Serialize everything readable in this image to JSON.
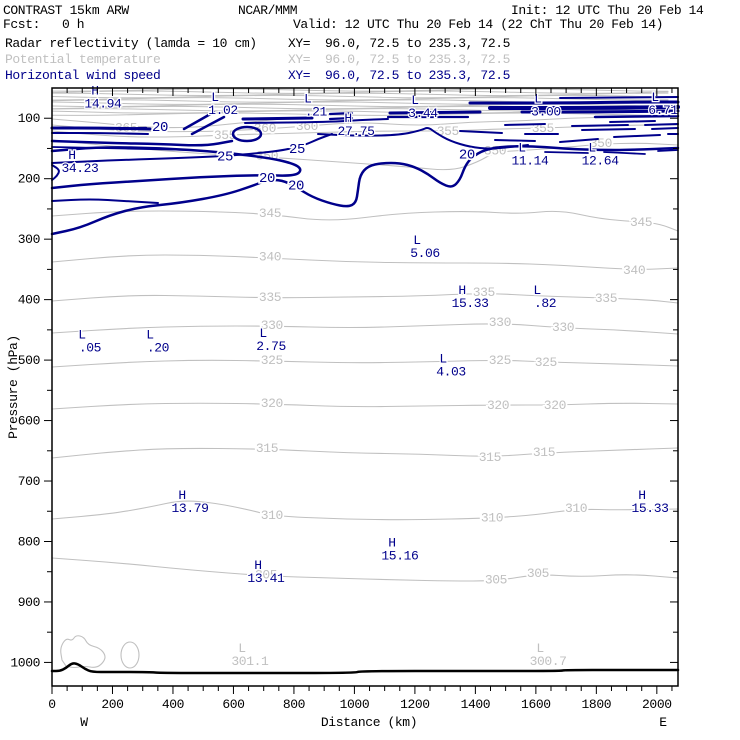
{
  "header": {
    "title": "CONTRAST 15km ARW",
    "center": "NCAR/MMM",
    "init": "Init: 12 UTC Thu 20 Feb 14",
    "fcst_label": "Fcst:",
    "fcst_value": "0 h",
    "valid": "Valid: 12 UTC Thu 20 Feb 14 (22 ChT Thu 20 Feb 14)"
  },
  "legend": [
    {
      "name": "Radar reflectivity (lamda = 10 cm)",
      "xy": "XY=  96.0, 72.5 to 235.3, 72.5",
      "color": "#000000"
    },
    {
      "name": "Potential temperature",
      "xy": "XY=  96.0, 72.5 to 235.3, 72.5",
      "color": "#c0c0c0"
    },
    {
      "name": "Horizontal wind speed",
      "xy": "XY=  96.0, 72.5 to 235.3, 72.5",
      "color": "#00008b"
    }
  ],
  "colors": {
    "theta": "#c0c0c0",
    "wind": "#00008b",
    "reflectivity": "#000000",
    "frame": "#000000",
    "background": "#ffffff"
  },
  "chart_data": {
    "type": "contour-cross-section",
    "title": "Vertical cross section: radar reflectivity, potential temperature, horizontal wind speed",
    "x_axis": {
      "label": "Distance (km)",
      "west_label": "W",
      "east_label": "E",
      "range_km": [
        0,
        2070
      ],
      "major_ticks": [
        0,
        200,
        400,
        600,
        800,
        1000,
        1200,
        1400,
        1600,
        1800,
        2000
      ],
      "minor_tick_step": 50
    },
    "y_axis": {
      "label": "Pressure (hPa)",
      "range_hPa": [
        50,
        1039
      ],
      "major_ticks": [
        100,
        200,
        300,
        400,
        500,
        600,
        700,
        800,
        900,
        1000
      ],
      "minor_tick_step": 50
    },
    "fields": [
      {
        "name": "Radar reflectivity (lamda = 10 cm)",
        "color": "#000000",
        "note": "no contours visible; thick black line is surface"
      },
      {
        "name": "Potential temperature",
        "color": "#c0c0c0",
        "units": "K",
        "contour_interval": 5
      },
      {
        "name": "Horizontal wind speed",
        "color": "#00008b",
        "units": "m/s"
      }
    ],
    "wind_extrema": [
      {
        "t": "H",
        "v": "14.94",
        "km": 142,
        "p": 54
      },
      {
        "t": "L",
        "v": "1.02",
        "km": 539,
        "p": 65
      },
      {
        "t": "L",
        "v": ".21",
        "km": 846,
        "p": 67
      },
      {
        "t": "H",
        "v": "27.75",
        "km": 979,
        "p": 100
      },
      {
        "t": "L",
        "v": "3.44",
        "km": 1200,
        "p": 70
      },
      {
        "t": "L",
        "v": "3.00",
        "km": 1607,
        "p": 67
      },
      {
        "t": "L",
        "v": "6.71",
        "km": 1994,
        "p": 65
      },
      {
        "t": "H",
        "v": "34.23",
        "km": 66,
        "p": 161
      },
      {
        "t": "L",
        "v": "11.14",
        "km": 1554,
        "p": 148
      },
      {
        "t": "L",
        "v": "12.64",
        "km": 1786,
        "p": 148
      },
      {
        "t": "L",
        "v": "5.06",
        "km": 1207,
        "p": 301
      },
      {
        "t": "H",
        "v": "15.33",
        "km": 1356,
        "p": 384
      },
      {
        "t": "L",
        "v": ".82",
        "km": 1604,
        "p": 384
      },
      {
        "t": "L",
        "v": ".05",
        "km": 99,
        "p": 458
      },
      {
        "t": "L",
        "v": ".20",
        "km": 324,
        "p": 458
      },
      {
        "t": "L",
        "v": "2.75",
        "km": 698,
        "p": 455
      },
      {
        "t": "L",
        "v": "4.03",
        "km": 1293,
        "p": 497
      },
      {
        "t": "H",
        "v": "13.79",
        "km": 430,
        "p": 723
      },
      {
        "t": "H",
        "v": "15.33",
        "km": 1951,
        "p": 723
      },
      {
        "t": "H",
        "v": "15.16",
        "km": 1124,
        "p": 802
      },
      {
        "t": "H",
        "v": "13.41",
        "km": 681,
        "p": 839
      }
    ],
    "theta_extrema": [
      {
        "t": "L",
        "v": "301.1",
        "km": 628,
        "p": 976
      },
      {
        "t": "L",
        "v": "300.7",
        "km": 1614,
        "p": 976
      }
    ],
    "wind_contour_labels": [
      {
        "v": "20",
        "km": 357,
        "p": 113
      },
      {
        "v": "25",
        "km": 572,
        "p": 162
      },
      {
        "v": "25",
        "km": 810,
        "p": 149
      },
      {
        "v": "20",
        "km": 711,
        "p": 197
      },
      {
        "v": "20",
        "km": 807,
        "p": 210
      },
      {
        "v": "20",
        "km": 1372,
        "p": 158
      }
    ],
    "theta_contour_labels": [
      {
        "v": "365",
        "km": 245,
        "p": 115
      },
      {
        "v": "360",
        "km": 704,
        "p": 116
      },
      {
        "v": "360",
        "km": 843,
        "p": 113
      },
      {
        "v": "355",
        "km": 572,
        "p": 128
      },
      {
        "v": "355",
        "km": 1309,
        "p": 121
      },
      {
        "v": "355",
        "km": 1623,
        "p": 116
      },
      {
        "v": "350",
        "km": 711,
        "p": 162
      },
      {
        "v": "350",
        "km": 1465,
        "p": 153
      },
      {
        "v": "350",
        "km": 1815,
        "p": 141
      },
      {
        "v": "345",
        "km": 721,
        "p": 257
      },
      {
        "v": "345",
        "km": 1948,
        "p": 272
      },
      {
        "v": "340",
        "km": 721,
        "p": 329
      },
      {
        "v": "340",
        "km": 1925,
        "p": 351
      },
      {
        "v": "335",
        "km": 721,
        "p": 396
      },
      {
        "v": "335",
        "km": 1428,
        "p": 387
      },
      {
        "v": "335",
        "km": 1832,
        "p": 397
      },
      {
        "v": "330",
        "km": 727,
        "p": 442
      },
      {
        "v": "330",
        "km": 1481,
        "p": 437
      },
      {
        "v": "330",
        "km": 1690,
        "p": 445
      },
      {
        "v": "325",
        "km": 727,
        "p": 500
      },
      {
        "v": "325",
        "km": 1481,
        "p": 500
      },
      {
        "v": "325",
        "km": 1633,
        "p": 503
      },
      {
        "v": "320",
        "km": 727,
        "p": 571
      },
      {
        "v": "320",
        "km": 1475,
        "p": 574
      },
      {
        "v": "320",
        "km": 1663,
        "p": 574
      },
      {
        "v": "315",
        "km": 711,
        "p": 645
      },
      {
        "v": "315",
        "km": 1448,
        "p": 660
      },
      {
        "v": "315",
        "km": 1627,
        "p": 652
      },
      {
        "v": "310",
        "km": 727,
        "p": 756
      },
      {
        "v": "310",
        "km": 1455,
        "p": 760
      },
      {
        "v": "310",
        "km": 1733,
        "p": 745
      },
      {
        "v": "305",
        "km": 708,
        "p": 855
      },
      {
        "v": "305",
        "km": 1468,
        "p": 863
      },
      {
        "v": "305",
        "km": 1607,
        "p": 852
      }
    ]
  }
}
